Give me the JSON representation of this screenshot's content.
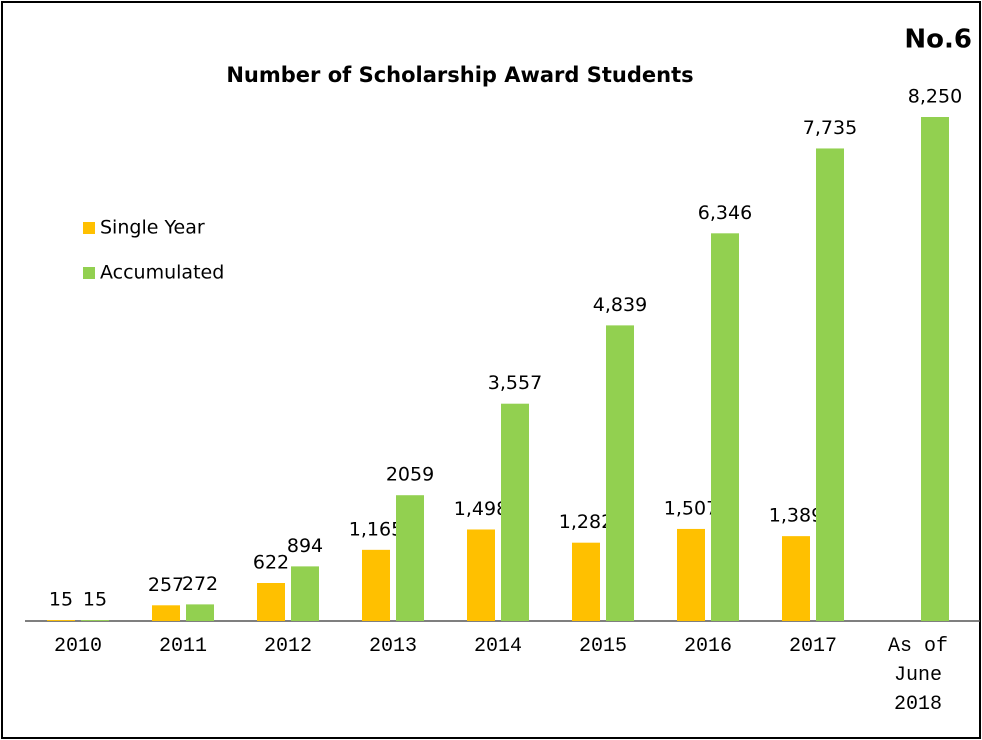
{
  "chart_data": {
    "type": "bar",
    "title": "Number of Scholarship Award Students",
    "annotation": "No.6",
    "categories": [
      "2010",
      "2011",
      "2012",
      "2013",
      "2014",
      "2015",
      "2016",
      "2017",
      "As of June 2018"
    ],
    "series": [
      {
        "name": "Single Year",
        "color": "#FFC000",
        "values": [
          15,
          257,
          622,
          1165,
          1498,
          1282,
          1507,
          1389,
          null
        ],
        "value_labels": [
          "15",
          "257",
          "622",
          "1,165",
          "1,498",
          "1,282",
          "1,507",
          "1,389",
          null
        ]
      },
      {
        "name": "Accumulated",
        "color": "#92D050",
        "values": [
          15,
          272,
          894,
          2059,
          3557,
          4839,
          6346,
          7735,
          8250
        ],
        "value_labels": [
          "15",
          "272",
          "894",
          "2059",
          "3,557",
          "4,839",
          "6,346",
          "7,735",
          "8,250"
        ]
      }
    ],
    "legend": "left"
  }
}
